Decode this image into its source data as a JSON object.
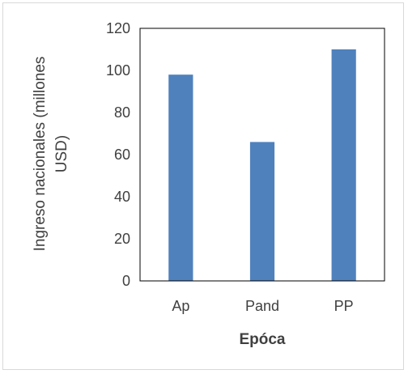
{
  "chart_data": {
    "type": "bar",
    "title": "",
    "categories": [
      "Ap",
      "Pand",
      "PP"
    ],
    "values": [
      98,
      66,
      110
    ],
    "xlabel": "Epóca",
    "ylabel_lines": [
      "Ingreso nacionales (millones",
      "USD)"
    ],
    "ylim": [
      0,
      120
    ],
    "yticks": [
      "0",
      "20",
      "40",
      "60",
      "80",
      "100",
      "120"
    ],
    "grid": false,
    "legend": "none",
    "bar_color": "#4F81BD",
    "axis_color": "#404040"
  }
}
